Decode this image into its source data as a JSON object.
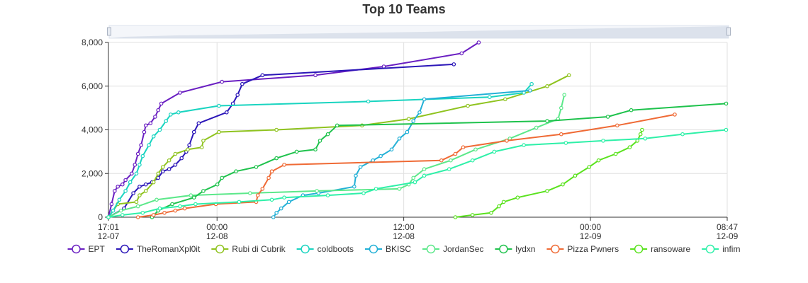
{
  "chart_data": {
    "type": "line",
    "title": "Top 10 Teams",
    "x_unit": "hours since 17:01 12-07",
    "ylim": [
      0,
      8000
    ],
    "y_ticks": [
      "0",
      "2,000",
      "4,000",
      "6,000",
      "8,000"
    ],
    "x_ticks": [
      {
        "time": "17:01",
        "date": "12-07",
        "x": 0
      },
      {
        "time": "00:00",
        "date": "12-08",
        "x": 6.98
      },
      {
        "time": "12:00",
        "date": "12-08",
        "x": 18.98
      },
      {
        "time": "00:00",
        "date": "12-09",
        "x": 30.98
      },
      {
        "time": "08:47",
        "date": "12-09",
        "x": 39.77
      }
    ],
    "xlim": [
      0,
      39.77
    ],
    "grid": true,
    "legend_position": "bottom",
    "series": [
      {
        "name": "EPT",
        "color": "#6a1fc2",
        "points": [
          [
            0,
            0
          ],
          [
            0.2,
            600
          ],
          [
            0.4,
            1200
          ],
          [
            0.6,
            1400
          ],
          [
            0.9,
            1500
          ],
          [
            1.1,
            1700
          ],
          [
            1.5,
            2000
          ],
          [
            1.7,
            2400
          ],
          [
            1.9,
            2900
          ],
          [
            2.1,
            3300
          ],
          [
            2.3,
            3900
          ],
          [
            2.4,
            4200
          ],
          [
            2.7,
            4300
          ],
          [
            3.0,
            4600
          ],
          [
            3.2,
            4900
          ],
          [
            3.4,
            5200
          ],
          [
            4.6,
            5700
          ],
          [
            7.3,
            6200
          ],
          [
            13.3,
            6500
          ],
          [
            17.7,
            6900
          ],
          [
            22.7,
            7500
          ],
          [
            23.8,
            8000
          ]
        ]
      },
      {
        "name": "TheRomanXpl0it",
        "color": "#2b16b8",
        "points": [
          [
            0,
            0
          ],
          [
            1.0,
            400
          ],
          [
            1.6,
            1100
          ],
          [
            2.0,
            1400
          ],
          [
            2.4,
            1500
          ],
          [
            2.8,
            1600
          ],
          [
            3.2,
            1800
          ],
          [
            3.5,
            2100
          ],
          [
            3.9,
            2200
          ],
          [
            4.3,
            2400
          ],
          [
            4.7,
            2700
          ],
          [
            5.0,
            3000
          ],
          [
            5.2,
            3300
          ],
          [
            5.5,
            3900
          ],
          [
            5.8,
            4300
          ],
          [
            7.6,
            4800
          ],
          [
            8.0,
            5200
          ],
          [
            8.3,
            5600
          ],
          [
            8.6,
            6100
          ],
          [
            9.9,
            6500
          ],
          [
            22.2,
            7000
          ]
        ]
      },
      {
        "name": "Rubi di Cubrik",
        "color": "#8fc31f",
        "points": [
          [
            0,
            0
          ],
          [
            0.6,
            600
          ],
          [
            1.8,
            700
          ],
          [
            2.0,
            1000
          ],
          [
            2.4,
            1200
          ],
          [
            2.9,
            1600
          ],
          [
            3.2,
            2000
          ],
          [
            3.5,
            2300
          ],
          [
            3.9,
            2600
          ],
          [
            4.3,
            2900
          ],
          [
            5.1,
            3100
          ],
          [
            6.0,
            3200
          ],
          [
            6.1,
            3500
          ],
          [
            7.1,
            3900
          ],
          [
            10.8,
            4000
          ],
          [
            16.3,
            4200
          ],
          [
            19.3,
            4500
          ],
          [
            23.1,
            5100
          ],
          [
            25.5,
            5400
          ],
          [
            28.2,
            6000
          ],
          [
            29.6,
            6500
          ]
        ]
      },
      {
        "name": "coldboots",
        "color": "#19d4c0",
        "points": [
          [
            0,
            0
          ],
          [
            0.3,
            300
          ],
          [
            0.7,
            800
          ],
          [
            1.1,
            1200
          ],
          [
            1.4,
            1600
          ],
          [
            1.8,
            2000
          ],
          [
            2.0,
            2400
          ],
          [
            2.2,
            2800
          ],
          [
            2.6,
            3300
          ],
          [
            2.9,
            3700
          ],
          [
            3.3,
            4000
          ],
          [
            3.7,
            4400
          ],
          [
            4.0,
            4700
          ],
          [
            4.5,
            4800
          ],
          [
            7.1,
            5100
          ],
          [
            16.7,
            5300
          ],
          [
            24.5,
            5500
          ],
          [
            26.7,
            5700
          ],
          [
            27.2,
            6100
          ]
        ]
      },
      {
        "name": "BKISC",
        "color": "#22b0d6",
        "points": [
          [
            10.6,
            0
          ],
          [
            10.8,
            200
          ],
          [
            11.1,
            400
          ],
          [
            11.6,
            700
          ],
          [
            12.5,
            1000
          ],
          [
            13.5,
            1100
          ],
          [
            15.8,
            1400
          ],
          [
            15.9,
            1900
          ],
          [
            16.2,
            2300
          ],
          [
            17.0,
            2600
          ],
          [
            17.5,
            2800
          ],
          [
            18.2,
            3100
          ],
          [
            18.7,
            3600
          ],
          [
            19.2,
            3900
          ],
          [
            19.6,
            4400
          ],
          [
            20.0,
            4800
          ],
          [
            20.3,
            5400
          ],
          [
            27.1,
            5800
          ]
        ]
      },
      {
        "name": "JordanSec",
        "color": "#5ce88a",
        "points": [
          [
            0,
            0
          ],
          [
            0.8,
            300
          ],
          [
            1.9,
            500
          ],
          [
            3.1,
            800
          ],
          [
            5.3,
            1000
          ],
          [
            9.1,
            1100
          ],
          [
            13.4,
            1200
          ],
          [
            18.7,
            1300
          ],
          [
            19.3,
            1500
          ],
          [
            19.6,
            1800
          ],
          [
            20.3,
            2200
          ],
          [
            22.0,
            2600
          ],
          [
            23.6,
            3100
          ],
          [
            25.8,
            3600
          ],
          [
            27.5,
            4100
          ],
          [
            28.9,
            4500
          ],
          [
            29.1,
            5000
          ],
          [
            29.3,
            5600
          ]
        ]
      },
      {
        "name": "lydxn",
        "color": "#1ec24c",
        "points": [
          [
            2.8,
            0
          ],
          [
            3.2,
            300
          ],
          [
            4.1,
            600
          ],
          [
            5.5,
            900
          ],
          [
            6.1,
            1200
          ],
          [
            7.0,
            1500
          ],
          [
            7.3,
            1800
          ],
          [
            8.2,
            2100
          ],
          [
            9.5,
            2300
          ],
          [
            10.8,
            2700
          ],
          [
            12.1,
            3000
          ],
          [
            13.3,
            3100
          ],
          [
            13.6,
            3500
          ],
          [
            14.1,
            3800
          ],
          [
            14.7,
            4200
          ],
          [
            28.2,
            4400
          ],
          [
            32.1,
            4600
          ],
          [
            33.6,
            4900
          ],
          [
            39.7,
            5200
          ]
        ]
      },
      {
        "name": "Pizza Pwners",
        "color": "#ef6a35",
        "points": [
          [
            1.9,
            0
          ],
          [
            2.9,
            100
          ],
          [
            3.6,
            200
          ],
          [
            4.3,
            300
          ],
          [
            4.9,
            400
          ],
          [
            6.9,
            600
          ],
          [
            9.5,
            700
          ],
          [
            9.6,
            1000
          ],
          [
            9.9,
            1300
          ],
          [
            10.3,
            1800
          ],
          [
            10.5,
            2100
          ],
          [
            11.3,
            2400
          ],
          [
            21.4,
            2600
          ],
          [
            22.3,
            2900
          ],
          [
            22.8,
            3200
          ],
          [
            25.6,
            3500
          ],
          [
            29.1,
            3800
          ],
          [
            32.7,
            4200
          ],
          [
            36.4,
            4700
          ]
        ]
      },
      {
        "name": "ransoware",
        "color": "#5ae21e",
        "points": [
          [
            22.3,
            0
          ],
          [
            23.4,
            100
          ],
          [
            24.6,
            200
          ],
          [
            25.1,
            500
          ],
          [
            25.4,
            700
          ],
          [
            26.3,
            900
          ],
          [
            28.2,
            1200
          ],
          [
            29.2,
            1500
          ],
          [
            30.0,
            1900
          ],
          [
            30.9,
            2300
          ],
          [
            31.5,
            2600
          ],
          [
            32.6,
            2900
          ],
          [
            33.5,
            3200
          ],
          [
            34.0,
            3500
          ],
          [
            34.2,
            3800
          ],
          [
            34.3,
            4000
          ]
        ]
      },
      {
        "name": "infim",
        "color": "#2ef0a8",
        "points": [
          [
            0,
            0
          ],
          [
            0.9,
            100
          ],
          [
            2.2,
            200
          ],
          [
            3.3,
            400
          ],
          [
            4.6,
            500
          ],
          [
            5.6,
            600
          ],
          [
            8.4,
            700
          ],
          [
            10.5,
            800
          ],
          [
            11.3,
            900
          ],
          [
            14.1,
            1000
          ],
          [
            16.4,
            1100
          ],
          [
            17.2,
            1300
          ],
          [
            19.7,
            1600
          ],
          [
            20.3,
            1900
          ],
          [
            21.9,
            2200
          ],
          [
            23.4,
            2600
          ],
          [
            24.8,
            3000
          ],
          [
            26.7,
            3300
          ],
          [
            29.4,
            3400
          ],
          [
            31.8,
            3500
          ],
          [
            34.5,
            3600
          ],
          [
            36.9,
            3800
          ],
          [
            39.7,
            4000
          ]
        ]
      }
    ]
  }
}
